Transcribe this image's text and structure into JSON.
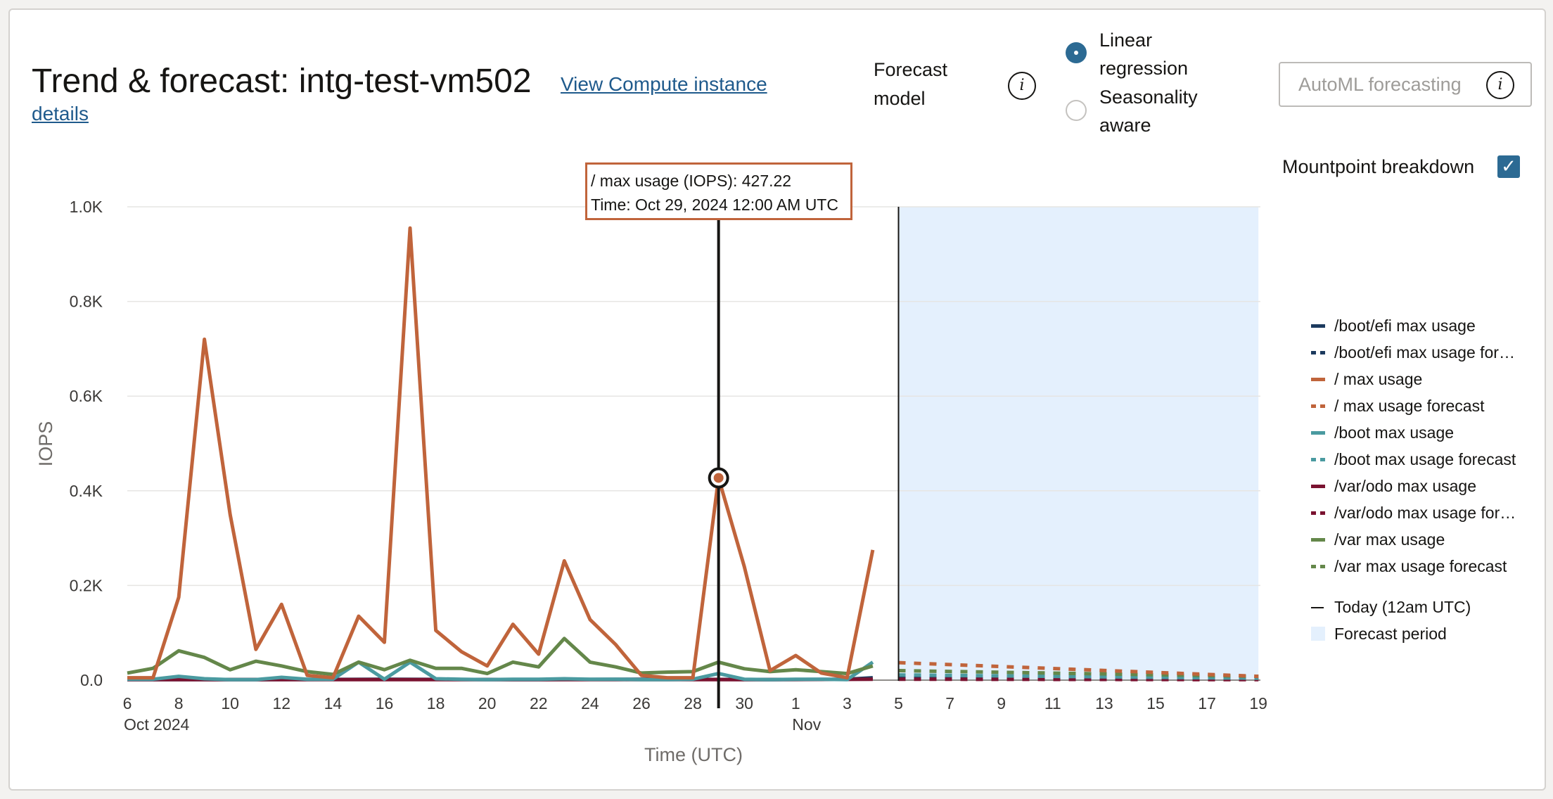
{
  "header": {
    "title": "Trend & forecast: intg-test-vm502",
    "view_link": "View Compute instance",
    "details_link": "details"
  },
  "forecast_model": {
    "label": "Forecast model",
    "info_icon": "info-icon",
    "options": [
      {
        "label": "Linear regression",
        "selected": true
      },
      {
        "label": "Seasonality aware",
        "selected": false
      }
    ],
    "automl_label": "AutoML forecasting"
  },
  "mountpoint": {
    "label": "Mountpoint breakdown",
    "checked": true
  },
  "tooltip": {
    "line1": "/ max usage (IOPS): 427.22",
    "line2": "Time: Oct 29, 2024 12:00 AM UTC"
  },
  "colors": {
    "boot_efi": "#1c3a5e",
    "root": "#c0643b",
    "boot": "#4a9aa0",
    "var_odo": "#7a1230",
    "var": "#64874a",
    "forecast_band": "#e4f0fd",
    "accent": "#2c6a93"
  },
  "legend": [
    {
      "label": "/boot/efi max usage",
      "color": "#1c3a5e",
      "style": "solid"
    },
    {
      "label": "/boot/efi max usage forecast",
      "color": "#1c3a5e",
      "style": "dashed"
    },
    {
      "label": "/ max usage",
      "color": "#c0643b",
      "style": "solid"
    },
    {
      "label": "/ max usage forecast",
      "color": "#c0643b",
      "style": "dashed"
    },
    {
      "label": "/boot max usage",
      "color": "#4a9aa0",
      "style": "solid"
    },
    {
      "label": "/boot max usage forecast",
      "color": "#4a9aa0",
      "style": "dashed"
    },
    {
      "label": "/var/odo max usage",
      "color": "#7a1230",
      "style": "solid"
    },
    {
      "label": "/var/odo max usage forecast",
      "color": "#7a1230",
      "style": "dashed"
    },
    {
      "label": "/var max usage",
      "color": "#64874a",
      "style": "solid"
    },
    {
      "label": "/var max usage forecast",
      "color": "#64874a",
      "style": "dashed"
    },
    {
      "label": "Today (12am UTC)",
      "color": "#161513",
      "style": "thin"
    },
    {
      "label": "Forecast period",
      "color": "#e4f0fd",
      "style": "box"
    }
  ],
  "chart_data": {
    "type": "line",
    "ylabel": "IOPS",
    "xlabel": "Time (UTC)",
    "ylim": [
      0,
      1000
    ],
    "y_ticks": [
      0,
      200,
      400,
      600,
      800,
      1000
    ],
    "y_tick_labels": [
      "0.0",
      "0.2K",
      "0.4K",
      "0.6K",
      "0.8K",
      "1.0K"
    ],
    "x_domain": [
      "2024-10-06",
      "2024-11-19"
    ],
    "x_ticks": [
      {
        "date": "2024-10-06",
        "label": "6",
        "sub": "Oct 2024"
      },
      {
        "date": "2024-10-08",
        "label": "8"
      },
      {
        "date": "2024-10-10",
        "label": "10"
      },
      {
        "date": "2024-10-12",
        "label": "12"
      },
      {
        "date": "2024-10-14",
        "label": "14"
      },
      {
        "date": "2024-10-16",
        "label": "16"
      },
      {
        "date": "2024-10-18",
        "label": "18"
      },
      {
        "date": "2024-10-20",
        "label": "20"
      },
      {
        "date": "2024-10-22",
        "label": "22"
      },
      {
        "date": "2024-10-24",
        "label": "24"
      },
      {
        "date": "2024-10-26",
        "label": "26"
      },
      {
        "date": "2024-10-28",
        "label": "28"
      },
      {
        "date": "2024-10-30",
        "label": "30"
      },
      {
        "date": "2024-11-01",
        "label": "1",
        "sub": "Nov"
      },
      {
        "date": "2024-11-03",
        "label": "3"
      },
      {
        "date": "2024-11-05",
        "label": "5"
      },
      {
        "date": "2024-11-07",
        "label": "7"
      },
      {
        "date": "2024-11-09",
        "label": "9"
      },
      {
        "date": "2024-11-11",
        "label": "11"
      },
      {
        "date": "2024-11-13",
        "label": "13"
      },
      {
        "date": "2024-11-15",
        "label": "15"
      },
      {
        "date": "2024-11-17",
        "label": "17"
      },
      {
        "date": "2024-11-19",
        "label": "19"
      }
    ],
    "today": "2024-11-05",
    "forecast_period": [
      "2024-11-05",
      "2024-11-19"
    ],
    "hover": {
      "series": "/ max usage",
      "date": "2024-10-29",
      "value": 427.22
    },
    "series": [
      {
        "name": "/ max usage",
        "color": "#c0643b",
        "style": "solid",
        "x": [
          "2024-10-06",
          "2024-10-07",
          "2024-10-08",
          "2024-10-09",
          "2024-10-10",
          "2024-10-11",
          "2024-10-12",
          "2024-10-13",
          "2024-10-14",
          "2024-10-15",
          "2024-10-16",
          "2024-10-17",
          "2024-10-18",
          "2024-10-19",
          "2024-10-20",
          "2024-10-21",
          "2024-10-22",
          "2024-10-23",
          "2024-10-24",
          "2024-10-25",
          "2024-10-26",
          "2024-10-27",
          "2024-10-28",
          "2024-10-29",
          "2024-10-30",
          "2024-10-31",
          "2024-11-01",
          "2024-11-02",
          "2024-11-03",
          "2024-11-04"
        ],
        "values": [
          5,
          5,
          175,
          720,
          350,
          65,
          160,
          10,
          5,
          135,
          80,
          955,
          105,
          60,
          30,
          118,
          55,
          252,
          128,
          75,
          10,
          5,
          5,
          427.22,
          240,
          20,
          52,
          15,
          5,
          275
        ]
      },
      {
        "name": "/var max usage",
        "color": "#64874a",
        "style": "solid",
        "x": [
          "2024-10-06",
          "2024-10-07",
          "2024-10-08",
          "2024-10-09",
          "2024-10-10",
          "2024-10-11",
          "2024-10-12",
          "2024-10-13",
          "2024-10-14",
          "2024-10-15",
          "2024-10-16",
          "2024-10-17",
          "2024-10-18",
          "2024-10-19",
          "2024-10-20",
          "2024-10-21",
          "2024-10-22",
          "2024-10-23",
          "2024-10-24",
          "2024-10-25",
          "2024-10-26",
          "2024-10-27",
          "2024-10-28",
          "2024-10-29",
          "2024-10-30",
          "2024-10-31",
          "2024-11-01",
          "2024-11-02",
          "2024-11-03",
          "2024-11-04"
        ],
        "values": [
          15,
          25,
          62,
          48,
          22,
          40,
          30,
          18,
          12,
          38,
          22,
          42,
          25,
          25,
          14,
          38,
          28,
          88,
          38,
          28,
          15,
          17,
          18,
          38,
          24,
          18,
          22,
          18,
          14,
          30
        ]
      },
      {
        "name": "/boot max usage",
        "color": "#4a9aa0",
        "style": "solid",
        "x": [
          "2024-10-06",
          "2024-10-07",
          "2024-10-08",
          "2024-10-09",
          "2024-10-10",
          "2024-10-11",
          "2024-10-12",
          "2024-10-13",
          "2024-10-14",
          "2024-10-15",
          "2024-10-16",
          "2024-10-17",
          "2024-10-18",
          "2024-10-19",
          "2024-10-20",
          "2024-10-21",
          "2024-10-22",
          "2024-10-23",
          "2024-10-24",
          "2024-10-25",
          "2024-10-26",
          "2024-10-27",
          "2024-10-28",
          "2024-10-29",
          "2024-10-30",
          "2024-10-31",
          "2024-11-01",
          "2024-11-02",
          "2024-11-03",
          "2024-11-04"
        ],
        "values": [
          2,
          2,
          8,
          3,
          1,
          1,
          6,
          2,
          2,
          38,
          2,
          38,
          3,
          2,
          1,
          2,
          2,
          3,
          2,
          2,
          1,
          1,
          2,
          14,
          2,
          1,
          2,
          2,
          1,
          38
        ]
      },
      {
        "name": "/var/odo max usage",
        "color": "#7a1230",
        "style": "solid",
        "x": [
          "2024-10-06",
          "2024-10-11",
          "2024-10-16",
          "2024-10-21",
          "2024-10-26",
          "2024-10-31",
          "2024-11-04"
        ],
        "values": [
          1,
          1,
          1,
          1,
          1,
          1,
          2
        ]
      },
      {
        "name": "/boot/efi max usage",
        "color": "#1c3a5e",
        "style": "solid",
        "x": [
          "2024-10-06",
          "2024-10-11",
          "2024-10-16",
          "2024-10-21",
          "2024-10-26",
          "2024-10-31",
          "2024-11-03",
          "2024-11-04"
        ],
        "values": [
          1,
          1,
          2,
          1,
          2,
          1,
          2,
          5
        ]
      },
      {
        "name": "/ max usage forecast",
        "color": "#c0643b",
        "style": "dashed",
        "x": [
          "2024-11-05",
          "2024-11-19"
        ],
        "values": [
          37,
          8
        ]
      },
      {
        "name": "/var max usage forecast",
        "color": "#64874a",
        "style": "dashed",
        "x": [
          "2024-11-05",
          "2024-11-19"
        ],
        "values": [
          20,
          8
        ]
      },
      {
        "name": "/boot max usage forecast",
        "color": "#4a9aa0",
        "style": "dashed",
        "x": [
          "2024-11-05",
          "2024-11-19"
        ],
        "values": [
          11,
          4
        ]
      },
      {
        "name": "/var/odo max usage forecast",
        "color": "#7a1230",
        "style": "dashed",
        "x": [
          "2024-11-05",
          "2024-11-19"
        ],
        "values": [
          2,
          1
        ]
      },
      {
        "name": "/boot/efi max usage forecast",
        "color": "#1c3a5e",
        "style": "dashed",
        "x": [
          "2024-11-05",
          "2024-11-19"
        ],
        "values": [
          4,
          2
        ]
      }
    ]
  }
}
